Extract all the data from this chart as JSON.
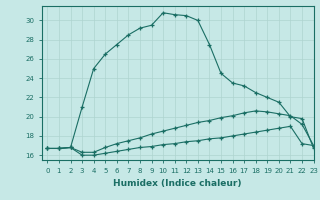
{
  "xlabel": "Humidex (Indice chaleur)",
  "ylabel": "",
  "bg_color": "#c6e8e6",
  "line_color": "#1a6e64",
  "grid_color": "#afd4d0",
  "xlim": [
    -0.5,
    23
  ],
  "ylim": [
    15.5,
    31.5
  ],
  "xticks": [
    0,
    1,
    2,
    3,
    4,
    5,
    6,
    7,
    8,
    9,
    10,
    11,
    12,
    13,
    14,
    15,
    16,
    17,
    18,
    19,
    20,
    21,
    22,
    23
  ],
  "yticks": [
    16,
    18,
    20,
    22,
    24,
    26,
    28,
    30
  ],
  "line1_x": [
    0,
    1,
    2,
    3,
    4,
    5,
    6,
    7,
    8,
    9,
    10,
    11,
    12,
    13,
    14,
    15,
    16,
    17,
    18,
    19,
    20,
    21,
    22,
    23
  ],
  "line1_y": [
    16.7,
    16.7,
    16.8,
    21.0,
    25.0,
    26.5,
    27.5,
    28.5,
    29.2,
    29.5,
    30.8,
    30.6,
    30.5,
    30.0,
    27.5,
    24.5,
    23.5,
    23.2,
    22.5,
    22.0,
    21.5,
    20.0,
    19.8,
    16.7
  ],
  "line2_x": [
    0,
    1,
    2,
    3,
    4,
    5,
    6,
    7,
    8,
    9,
    10,
    11,
    12,
    13,
    14,
    15,
    16,
    17,
    18,
    19,
    20,
    21,
    22,
    23
  ],
  "line2_y": [
    16.7,
    16.7,
    16.8,
    16.3,
    16.3,
    16.8,
    17.2,
    17.5,
    17.8,
    18.2,
    18.5,
    18.8,
    19.1,
    19.4,
    19.6,
    19.9,
    20.1,
    20.4,
    20.6,
    20.5,
    20.3,
    20.1,
    19.2,
    17.0
  ],
  "line3_x": [
    0,
    1,
    2,
    3,
    4,
    5,
    6,
    7,
    8,
    9,
    10,
    11,
    12,
    13,
    14,
    15,
    16,
    17,
    18,
    19,
    20,
    21,
    22,
    23
  ],
  "line3_y": [
    16.7,
    16.7,
    16.8,
    16.0,
    16.0,
    16.2,
    16.4,
    16.6,
    16.8,
    16.9,
    17.1,
    17.2,
    17.4,
    17.5,
    17.7,
    17.8,
    18.0,
    18.2,
    18.4,
    18.6,
    18.8,
    19.0,
    17.2,
    17.0
  ]
}
